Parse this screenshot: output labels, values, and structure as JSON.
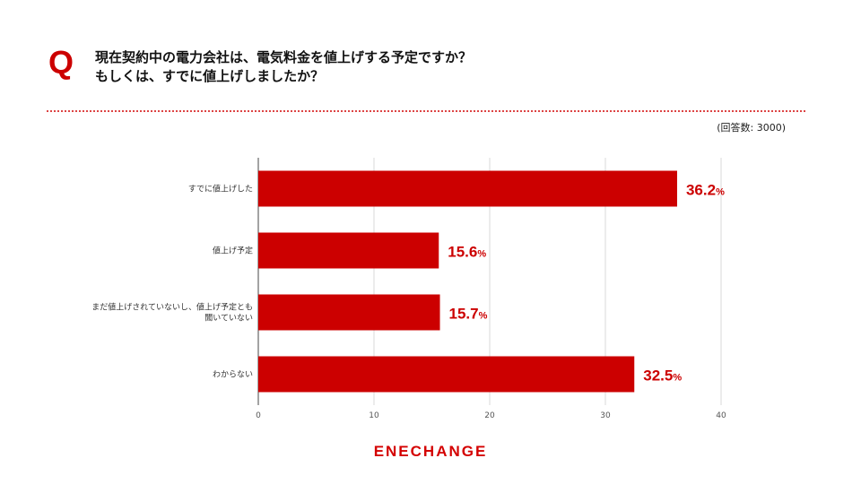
{
  "question": {
    "mark": "Q",
    "line1": "現在契約中の電力会社は、電気料金を値上げする予定ですか？",
    "line2": "もしくは、すでに値上げしましたか？"
  },
  "respondents_note": "(回答数: 3000)",
  "logo_text": "ENECHANGE",
  "colors": {
    "accent": "#cc0000",
    "bar": "#cc0000",
    "grid": "#d9d9d9",
    "axis": "#666666"
  },
  "chart_data": {
    "type": "bar",
    "orientation": "horizontal",
    "categories": [
      [
        "すでに値上げした"
      ],
      [
        "値上げ予定"
      ],
      [
        "まだ値上げされていないし、値上げ予定とも",
        "聞いていない"
      ],
      [
        "わからない"
      ]
    ],
    "values": [
      36.2,
      15.6,
      15.7,
      32.5
    ],
    "value_suffix": "%",
    "xlim": [
      0,
      40
    ],
    "xticks": [
      0,
      10,
      20,
      30,
      40
    ],
    "grid": true,
    "legend": "none"
  }
}
